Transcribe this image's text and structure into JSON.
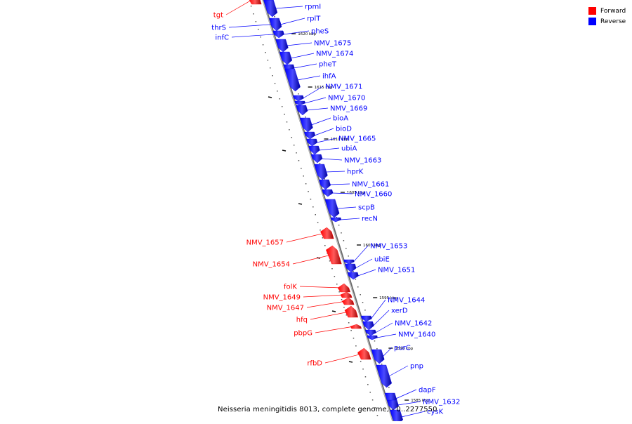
{
  "legend": {
    "forward_label": "Forward",
    "reverse_label": "Reverse",
    "forward_color": "#ff0000",
    "reverse_color": "#0000ff"
  },
  "caption": "Neisseria meningitidis 8013, complete genome, - 0..2277550",
  "ticks": [
    "1620 kbp",
    "1615 kbp",
    "1610 kbp",
    "1605 kbp",
    "1600 kbp",
    "1595 kbp",
    "1590 kbp",
    "1585 kbp"
  ],
  "genes": [
    {
      "name": "tgt",
      "strand": "forward",
      "color": "#ff0000"
    },
    {
      "name": "rpmI",
      "strand": "reverse",
      "color": "#0000ff"
    },
    {
      "name": "thrS",
      "strand": "reverse",
      "color": "#0000ff"
    },
    {
      "name": "rplT",
      "strand": "reverse",
      "color": "#0000ff"
    },
    {
      "name": "infC",
      "strand": "reverse",
      "color": "#0000ff"
    },
    {
      "name": "pheS",
      "strand": "reverse",
      "color": "#0000ff"
    },
    {
      "name": "NMV_1675",
      "strand": "reverse",
      "color": "#0000ff"
    },
    {
      "name": "NMV_1674",
      "strand": "reverse",
      "color": "#0000ff"
    },
    {
      "name": "pheT",
      "strand": "reverse",
      "color": "#0000ff"
    },
    {
      "name": "ihfA",
      "strand": "reverse",
      "color": "#0000ff"
    },
    {
      "name": "NMV_1671",
      "strand": "reverse",
      "color": "#0000ff"
    },
    {
      "name": "NMV_1670",
      "strand": "reverse",
      "color": "#0000ff"
    },
    {
      "name": "NMV_1669",
      "strand": "reverse",
      "color": "#0000ff"
    },
    {
      "name": "bioA",
      "strand": "reverse",
      "color": "#0000ff"
    },
    {
      "name": "bioD",
      "strand": "reverse",
      "color": "#0000ff"
    },
    {
      "name": "NMV_1665",
      "strand": "reverse",
      "color": "#0000ff"
    },
    {
      "name": "ubiA",
      "strand": "reverse",
      "color": "#0000ff"
    },
    {
      "name": "NMV_1663",
      "strand": "reverse",
      "color": "#0000ff"
    },
    {
      "name": "hprK",
      "strand": "reverse",
      "color": "#0000ff"
    },
    {
      "name": "NMV_1661",
      "strand": "reverse",
      "color": "#0000ff"
    },
    {
      "name": "NMV_1660",
      "strand": "reverse",
      "color": "#0000ff"
    },
    {
      "name": "scpB",
      "strand": "reverse",
      "color": "#0000ff"
    },
    {
      "name": "recN",
      "strand": "reverse",
      "color": "#0000ff"
    },
    {
      "name": "NMV_1657",
      "strand": "forward",
      "color": "#ff0000"
    },
    {
      "name": "NMV_1653",
      "strand": "reverse",
      "color": "#0000ff"
    },
    {
      "name": "NMV_1654",
      "strand": "forward",
      "color": "#ff0000"
    },
    {
      "name": "ubiE",
      "strand": "reverse",
      "color": "#0000ff"
    },
    {
      "name": "NMV_1651",
      "strand": "reverse",
      "color": "#0000ff"
    },
    {
      "name": "folK",
      "strand": "forward",
      "color": "#ff0000"
    },
    {
      "name": "NMV_1649",
      "strand": "forward",
      "color": "#ff0000"
    },
    {
      "name": "NMV_1644",
      "strand": "reverse",
      "color": "#0000ff"
    },
    {
      "name": "NMV_1647",
      "strand": "forward",
      "color": "#ff0000"
    },
    {
      "name": "xerD",
      "strand": "reverse",
      "color": "#0000ff"
    },
    {
      "name": "hfq",
      "strand": "forward",
      "color": "#ff0000"
    },
    {
      "name": "NMV_1642",
      "strand": "reverse",
      "color": "#0000ff"
    },
    {
      "name": "pbpG",
      "strand": "forward",
      "color": "#ff0000"
    },
    {
      "name": "NMV_1640",
      "strand": "reverse",
      "color": "#0000ff"
    },
    {
      "name": "purC",
      "strand": "reverse",
      "color": "#0000ff"
    },
    {
      "name": "rfbD",
      "strand": "forward",
      "color": "#ff0000"
    },
    {
      "name": "pnp",
      "strand": "reverse",
      "color": "#0000ff"
    },
    {
      "name": "dapF",
      "strand": "reverse",
      "color": "#0000ff"
    },
    {
      "name": "NMV_1632",
      "strand": "reverse",
      "color": "#0000ff"
    },
    {
      "name": "cysK",
      "strand": "reverse",
      "color": "#0000ff"
    }
  ]
}
